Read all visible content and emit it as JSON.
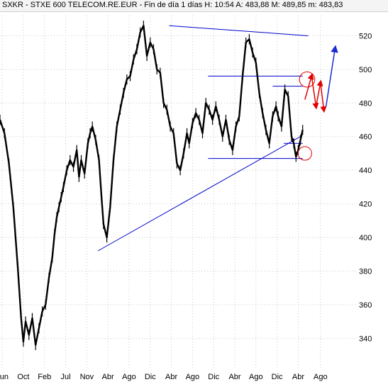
{
  "header": {
    "title": "SXKR - STXE 600 TELECOM.RE.EUR - Fin de día 1 días H: 10:54 A: 483,88 M: 489,85 m: 483,83"
  },
  "colors": {
    "price": "#000000",
    "trendline": "#0000cc",
    "annotation": "#e00000",
    "projection": "#1a2ad0",
    "grid": "#c8c8c8"
  },
  "chart_data": {
    "type": "line",
    "title": "",
    "xlabel": "",
    "ylabel": "",
    "ylim": [
      322,
      532
    ],
    "yticks": [
      340,
      360,
      380,
      400,
      420,
      440,
      460,
      480,
      500,
      520
    ],
    "xticks": [
      "Jun",
      "Oct",
      "Feb",
      "Jul",
      "Nov",
      "Abr",
      "Ago",
      "Dic",
      "Abr",
      "Ago",
      "Dic",
      "Abr",
      "Ago",
      "Dic",
      "Abr",
      "Ago"
    ],
    "grid": true,
    "series": [
      {
        "name": "",
        "points": [
          [
            0,
            470
          ],
          [
            0.4,
            462
          ],
          [
            0.8,
            444
          ],
          [
            1.2,
            418
          ],
          [
            1.6,
            382
          ],
          [
            1.9,
            352
          ],
          [
            2.1,
            338
          ],
          [
            2.3,
            350
          ],
          [
            2.6,
            342
          ],
          [
            2.9,
            352
          ],
          [
            3.2,
            336
          ],
          [
            3.5,
            346
          ],
          [
            3.8,
            356
          ],
          [
            4.1,
            360
          ],
          [
            4.4,
            376
          ],
          [
            4.7,
            388
          ],
          [
            4.9,
            402
          ],
          [
            5.1,
            412
          ],
          [
            5.3,
            418
          ],
          [
            5.5,
            424
          ],
          [
            5.7,
            430
          ],
          [
            6.0,
            440
          ],
          [
            6.3,
            446
          ],
          [
            6.6,
            442
          ],
          [
            6.9,
            452
          ],
          [
            7.1,
            436
          ],
          [
            7.3,
            446
          ],
          [
            7.6,
            438
          ],
          [
            7.9,
            456
          ],
          [
            8.1,
            462
          ],
          [
            8.3,
            466
          ],
          [
            8.6,
            458
          ],
          [
            8.9,
            446
          ],
          [
            9.1,
            426
          ],
          [
            9.3,
            408
          ],
          [
            9.6,
            400
          ],
          [
            9.9,
            418
          ],
          [
            10.2,
            446
          ],
          [
            10.5,
            466
          ],
          [
            10.8,
            476
          ],
          [
            11.1,
            486
          ],
          [
            11.4,
            494
          ],
          [
            11.7,
            496
          ],
          [
            12.0,
            506
          ],
          [
            12.3,
            512
          ],
          [
            12.6,
            522
          ],
          [
            12.9,
            526
          ],
          [
            13.2,
            508
          ],
          [
            13.5,
            516
          ],
          [
            13.8,
            512
          ],
          [
            14.1,
            500
          ],
          [
            14.4,
            498
          ],
          [
            14.7,
            480
          ],
          [
            15.0,
            476
          ],
          [
            15.3,
            466
          ],
          [
            15.6,
            462
          ],
          [
            15.9,
            444
          ],
          [
            16.2,
            440
          ],
          [
            16.5,
            450
          ],
          [
            16.8,
            462
          ],
          [
            17.0,
            456
          ],
          [
            17.3,
            468
          ],
          [
            17.6,
            474
          ],
          [
            17.9,
            470
          ],
          [
            18.2,
            462
          ],
          [
            18.5,
            480
          ],
          [
            18.8,
            476
          ],
          [
            19.1,
            470
          ],
          [
            19.4,
            478
          ],
          [
            19.7,
            470
          ],
          [
            20.0,
            460
          ],
          [
            20.3,
            470
          ],
          [
            20.6,
            458
          ],
          [
            20.9,
            452
          ],
          [
            21.2,
            466
          ],
          [
            21.5,
            472
          ],
          [
            21.8,
            496
          ],
          [
            22.1,
            516
          ],
          [
            22.4,
            518
          ],
          [
            22.7,
            510
          ],
          [
            23.0,
            504
          ],
          [
            23.3,
            486
          ],
          [
            23.6,
            474
          ],
          [
            23.9,
            464
          ],
          [
            24.2,
            456
          ],
          [
            24.5,
            472
          ],
          [
            24.8,
            478
          ],
          [
            25.0,
            472
          ],
          [
            25.3,
            466
          ],
          [
            25.6,
            488
          ],
          [
            25.9,
            484
          ],
          [
            26.2,
            460
          ],
          [
            26.4,
            456
          ],
          [
            26.6,
            448
          ],
          [
            26.8,
            452
          ],
          [
            27.0,
            458
          ],
          [
            27.2,
            464
          ]
        ]
      }
    ],
    "xrange": [
      0,
      32
    ],
    "x_tick_positions": [
      0.2,
      2.1,
      4.0,
      5.9,
      7.8,
      9.7,
      11.6,
      13.5,
      15.4,
      17.3,
      19.2,
      21.1,
      23.0,
      24.9,
      26.8,
      28.8
    ],
    "trendlines": [
      {
        "from": [
          15.2,
          526
        ],
        "to": [
          27.7,
          520
        ]
      },
      {
        "from": [
          8.8,
          392
        ],
        "to": [
          27.0,
          460
        ]
      },
      {
        "from": [
          18.7,
          496
        ],
        "to": [
          27.2,
          496
        ]
      },
      {
        "from": [
          24.5,
          490
        ],
        "to": [
          27.2,
          490
        ]
      },
      {
        "from": [
          25.5,
          456
        ],
        "to": [
          27.2,
          456
        ]
      },
      {
        "from": [
          18.7,
          447
        ],
        "to": [
          27.2,
          447
        ]
      }
    ],
    "circles": [
      {
        "center": [
          27.6,
          494
        ],
        "radius": 9
      },
      {
        "center": [
          27.4,
          450
        ],
        "radius": 8
      }
    ],
    "projection_zigzag": [
      [
        27.4,
        482
      ],
      [
        28.0,
        496
      ],
      [
        28.4,
        478
      ],
      [
        28.8,
        492
      ],
      [
        29.1,
        476
      ]
    ],
    "projection_arrow": [
      [
        29.3,
        478
      ],
      [
        30.1,
        512
      ]
    ]
  }
}
